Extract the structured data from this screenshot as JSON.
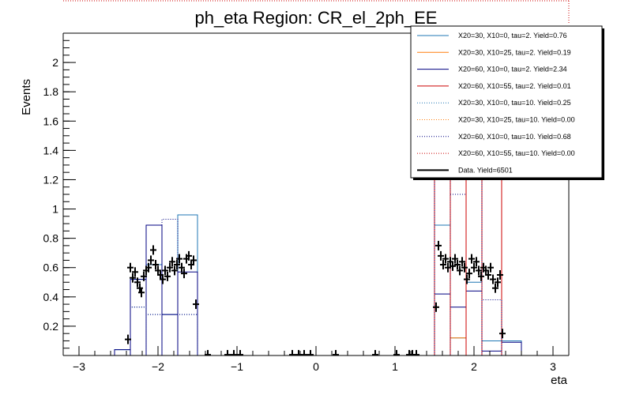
{
  "chart_data": {
    "type": "histogram",
    "title": "ph_eta Region: CR_el_2ph_EE",
    "xlabel": "eta",
    "ylabel": "Events",
    "xlim": [
      -3.2,
      3.2
    ],
    "ylim": [
      0,
      2.2
    ],
    "xticks": [
      -3,
      -2,
      -1,
      0,
      1,
      2,
      3
    ],
    "xtick_labels": [
      "−3",
      "−2",
      "−1",
      "0",
      "1",
      "2",
      "3"
    ],
    "yticks": [
      0.2,
      0.4,
      0.6,
      0.8,
      1,
      1.2,
      1.4,
      1.6,
      1.8,
      2
    ],
    "ytick_labels": [
      "0.2",
      "0.4",
      "0.6",
      "0.8",
      "1",
      "1.2",
      "1.4",
      "1.6",
      "1.8",
      "2"
    ],
    "legend_position": "top-right",
    "series": [
      {
        "name": "X20=30, X10=0, tau=2. Yield=0.76",
        "color": "#1f77b4",
        "style": "solid",
        "bins": [
          [
            -2.55,
            -2.35,
            0.04
          ],
          [
            -2.35,
            -2.15,
            0.52
          ],
          [
            -2.15,
            -1.95,
            0.62
          ],
          [
            -1.95,
            -1.75,
            0.28
          ],
          [
            -1.75,
            -1.5,
            0.96
          ],
          [
            1.5,
            1.7,
            0.89
          ],
          [
            1.7,
            1.9,
            0.12
          ],
          [
            1.9,
            2.1,
            0.5
          ],
          [
            2.1,
            2.35,
            0.1
          ],
          [
            2.35,
            2.6,
            0.1
          ]
        ]
      },
      {
        "name": "X20=30, X10=25, tau=2. Yield=0.19",
        "color": "#ff7f0e",
        "style": "solid",
        "bins": [
          [
            1.7,
            1.9,
            0.12
          ]
        ]
      },
      {
        "name": "X20=60, X10=0, tau=2. Yield=2.34",
        "color": "#000080",
        "style": "solid",
        "bins": [
          [
            -2.55,
            -2.35,
            0.04
          ],
          [
            -2.35,
            -2.15,
            0.52
          ],
          [
            -2.15,
            -1.95,
            0.89
          ],
          [
            -1.95,
            -1.75,
            0.28
          ],
          [
            -1.75,
            -1.5,
            0.57
          ],
          [
            1.5,
            1.7,
            0.42
          ],
          [
            1.7,
            1.9,
            0.33
          ],
          [
            1.9,
            2.1,
            0.44
          ],
          [
            2.1,
            2.35,
            0.03
          ],
          [
            2.35,
            2.6,
            0.09
          ]
        ]
      },
      {
        "name": "X20=60, X10=55, tau=2. Yield=0.01",
        "color": "#cc0000",
        "style": "solid",
        "bins": [
          [
            1.5,
            1.7,
            2.3
          ],
          [
            1.7,
            1.9,
            2.3
          ],
          [
            1.9,
            2.1,
            2.3
          ],
          [
            2.1,
            2.35,
            2.3
          ]
        ]
      },
      {
        "name": "X20=30, X10=0, tau=10. Yield=0.25",
        "color": "#1f77b4",
        "style": "dotted",
        "bins": [
          [
            -2.35,
            -2.15,
            0.33
          ],
          [
            -2.15,
            -1.95,
            0.28
          ],
          [
            -1.95,
            -1.75,
            0.93
          ],
          [
            -1.75,
            -1.5,
            0.28
          ]
        ]
      },
      {
        "name": "X20=30, X10=25, tau=10. Yield=0.00",
        "color": "#ff7f0e",
        "style": "dotted",
        "bins": []
      },
      {
        "name": "X20=60, X10=0, tau=10. Yield=0.68",
        "color": "#000080",
        "style": "dotted",
        "bins": [
          [
            -2.35,
            -2.15,
            0.33
          ],
          [
            -2.15,
            -1.95,
            0.28
          ],
          [
            -1.95,
            -1.75,
            0.93
          ],
          [
            -1.75,
            -1.5,
            0.28
          ],
          [
            1.5,
            1.7,
            1.6
          ],
          [
            1.7,
            1.9,
            1.1
          ],
          [
            1.9,
            2.1,
            1.3
          ],
          [
            2.1,
            2.35,
            0.38
          ]
        ]
      },
      {
        "name": "X20=60, X10=55, tau=10. Yield=0.00",
        "color": "#cc0000",
        "style": "dotted",
        "bins": [
          [
            1.7,
            1.9,
            2.3
          ],
          [
            1.9,
            2.1,
            2.3
          ]
        ]
      },
      {
        "name": "Data. Yield=6501",
        "color": "#000000",
        "style": "points",
        "points": [
          [
            -2.38,
            0.11
          ],
          [
            -2.35,
            0.6
          ],
          [
            -2.32,
            0.53
          ],
          [
            -2.29,
            0.57
          ],
          [
            -2.26,
            0.5
          ],
          [
            -2.23,
            0.46
          ],
          [
            -2.21,
            0.43
          ],
          [
            -2.18,
            0.54
          ],
          [
            -2.15,
            0.58
          ],
          [
            -2.12,
            0.6
          ],
          [
            -2.09,
            0.65
          ],
          [
            -2.06,
            0.72
          ],
          [
            -2.03,
            0.62
          ],
          [
            -2.0,
            0.58
          ],
          [
            -1.97,
            0.55
          ],
          [
            -1.94,
            0.52
          ],
          [
            -1.91,
            0.58
          ],
          [
            -1.88,
            0.54
          ],
          [
            -1.85,
            0.6
          ],
          [
            -1.82,
            0.64
          ],
          [
            -1.79,
            0.58
          ],
          [
            -1.76,
            0.62
          ],
          [
            -1.73,
            0.66
          ],
          [
            -1.7,
            0.6
          ],
          [
            -1.67,
            0.56
          ],
          [
            -1.64,
            0.66
          ],
          [
            -1.61,
            0.68
          ],
          [
            -1.58,
            0.62
          ],
          [
            -1.55,
            0.65
          ],
          [
            -1.52,
            0.35
          ],
          [
            -1.37,
            0.005
          ],
          [
            -1.12,
            0.005
          ],
          [
            -1.04,
            0.005
          ],
          [
            -0.96,
            0.005
          ],
          [
            -0.3,
            0.005
          ],
          [
            -0.22,
            0.005
          ],
          [
            -0.15,
            0.005
          ],
          [
            -0.07,
            0.005
          ],
          [
            0.25,
            0.005
          ],
          [
            0.75,
            0.005
          ],
          [
            1.02,
            0.005
          ],
          [
            1.18,
            0.005
          ],
          [
            1.22,
            0.005
          ],
          [
            1.27,
            0.005
          ],
          [
            1.52,
            0.33
          ],
          [
            1.55,
            0.75
          ],
          [
            1.58,
            0.68
          ],
          [
            1.61,
            0.62
          ],
          [
            1.64,
            0.66
          ],
          [
            1.67,
            0.6
          ],
          [
            1.7,
            0.64
          ],
          [
            1.73,
            0.61
          ],
          [
            1.76,
            0.66
          ],
          [
            1.79,
            0.62
          ],
          [
            1.82,
            0.58
          ],
          [
            1.85,
            0.64
          ],
          [
            1.88,
            0.6
          ],
          [
            1.91,
            0.52
          ],
          [
            1.94,
            0.56
          ],
          [
            1.97,
            0.66
          ],
          [
            2.0,
            0.6
          ],
          [
            2.03,
            0.64
          ],
          [
            2.06,
            0.58
          ],
          [
            2.09,
            0.54
          ],
          [
            2.12,
            0.6
          ],
          [
            2.15,
            0.58
          ],
          [
            2.18,
            0.55
          ],
          [
            2.21,
            0.6
          ],
          [
            2.24,
            0.52
          ],
          [
            2.27,
            0.46
          ],
          [
            2.3,
            0.5
          ],
          [
            2.33,
            0.55
          ],
          [
            2.36,
            0.15
          ]
        ]
      }
    ]
  }
}
